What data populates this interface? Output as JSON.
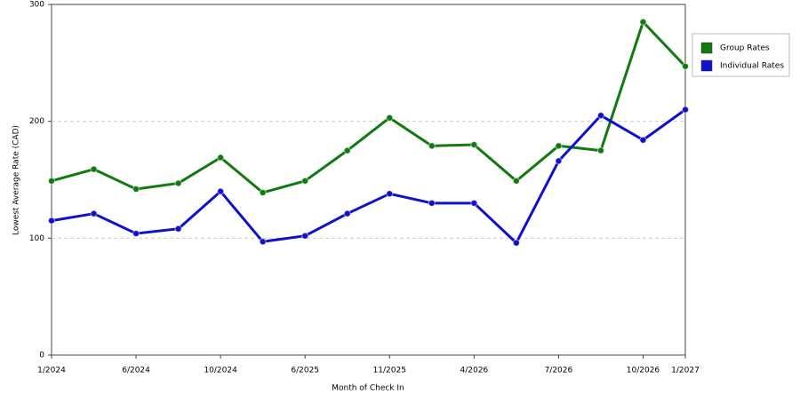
{
  "chart_data": {
    "type": "line",
    "x_label": "Month of Check In",
    "y_label": "Lowest Average Rate (CAD)",
    "categories": [
      "1/2024",
      null,
      "6/2024",
      null,
      "10/2024",
      null,
      "6/2025",
      null,
      "11/2025",
      null,
      "4/2026",
      null,
      "7/2026",
      null,
      "10/2026",
      "1/2027"
    ],
    "series": [
      {
        "name": "Group Rates",
        "color": "#107a10",
        "values": [
          149,
          159,
          142,
          147,
          169,
          139,
          149,
          175,
          203,
          179,
          180,
          149,
          179,
          175,
          285,
          247
        ]
      },
      {
        "name": "Individual Rates",
        "color": "#1010cc",
        "values": [
          115,
          121,
          104,
          108,
          140,
          97,
          102,
          121,
          138,
          130,
          130,
          96,
          166,
          205,
          184,
          210
        ]
      }
    ],
    "ylim": [
      0,
      300
    ],
    "yticks": [
      0,
      100,
      200,
      300
    ],
    "grid": true,
    "legend": "right"
  }
}
